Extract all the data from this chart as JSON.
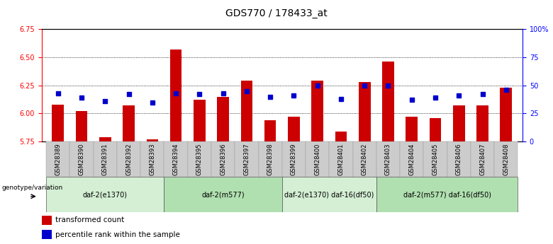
{
  "title": "GDS770 / 178433_at",
  "samples": [
    "GSM28389",
    "GSM28390",
    "GSM28391",
    "GSM28392",
    "GSM28393",
    "GSM28394",
    "GSM28395",
    "GSM28396",
    "GSM28397",
    "GSM28398",
    "GSM28399",
    "GSM28400",
    "GSM28401",
    "GSM28402",
    "GSM28403",
    "GSM28404",
    "GSM28405",
    "GSM28406",
    "GSM28407",
    "GSM28408"
  ],
  "transformed_count": [
    6.08,
    6.02,
    5.79,
    6.07,
    5.77,
    6.57,
    6.12,
    6.15,
    6.29,
    5.94,
    5.97,
    6.29,
    5.84,
    6.28,
    6.46,
    5.97,
    5.96,
    6.07,
    6.07,
    6.23
  ],
  "percentile_rank": [
    43,
    39,
    36,
    42,
    35,
    43,
    42,
    43,
    45,
    40,
    41,
    50,
    38,
    50,
    50,
    37,
    39,
    41,
    42,
    46
  ],
  "ylim_left": [
    5.75,
    6.75
  ],
  "ylim_right": [
    0,
    100
  ],
  "yticks_left": [
    5.75,
    6.0,
    6.25,
    6.5,
    6.75
  ],
  "yticks_right": [
    0,
    25,
    50,
    75,
    100
  ],
  "bar_color": "#cc0000",
  "dot_color": "#0000cc",
  "bar_bottom": 5.75,
  "groups": [
    {
      "label": "daf-2(e1370)",
      "start": 0,
      "end": 4
    },
    {
      "label": "daf-2(m577)",
      "start": 5,
      "end": 9
    },
    {
      "label": "daf-2(e1370) daf-16(df50)",
      "start": 10,
      "end": 13
    },
    {
      "label": "daf-2(m577) daf-16(df50)",
      "start": 14,
      "end": 19
    }
  ],
  "group_colors": [
    "#d4efd4",
    "#b0e0b0",
    "#d4efd4",
    "#b0e0b0"
  ],
  "genotype_label": "genotype/variation",
  "legend_bar_label": "transformed count",
  "legend_dot_label": "percentile rank within the sample",
  "bg_color": "#ffffff",
  "title_fontsize": 10,
  "tick_fontsize": 7,
  "bar_width": 0.5
}
